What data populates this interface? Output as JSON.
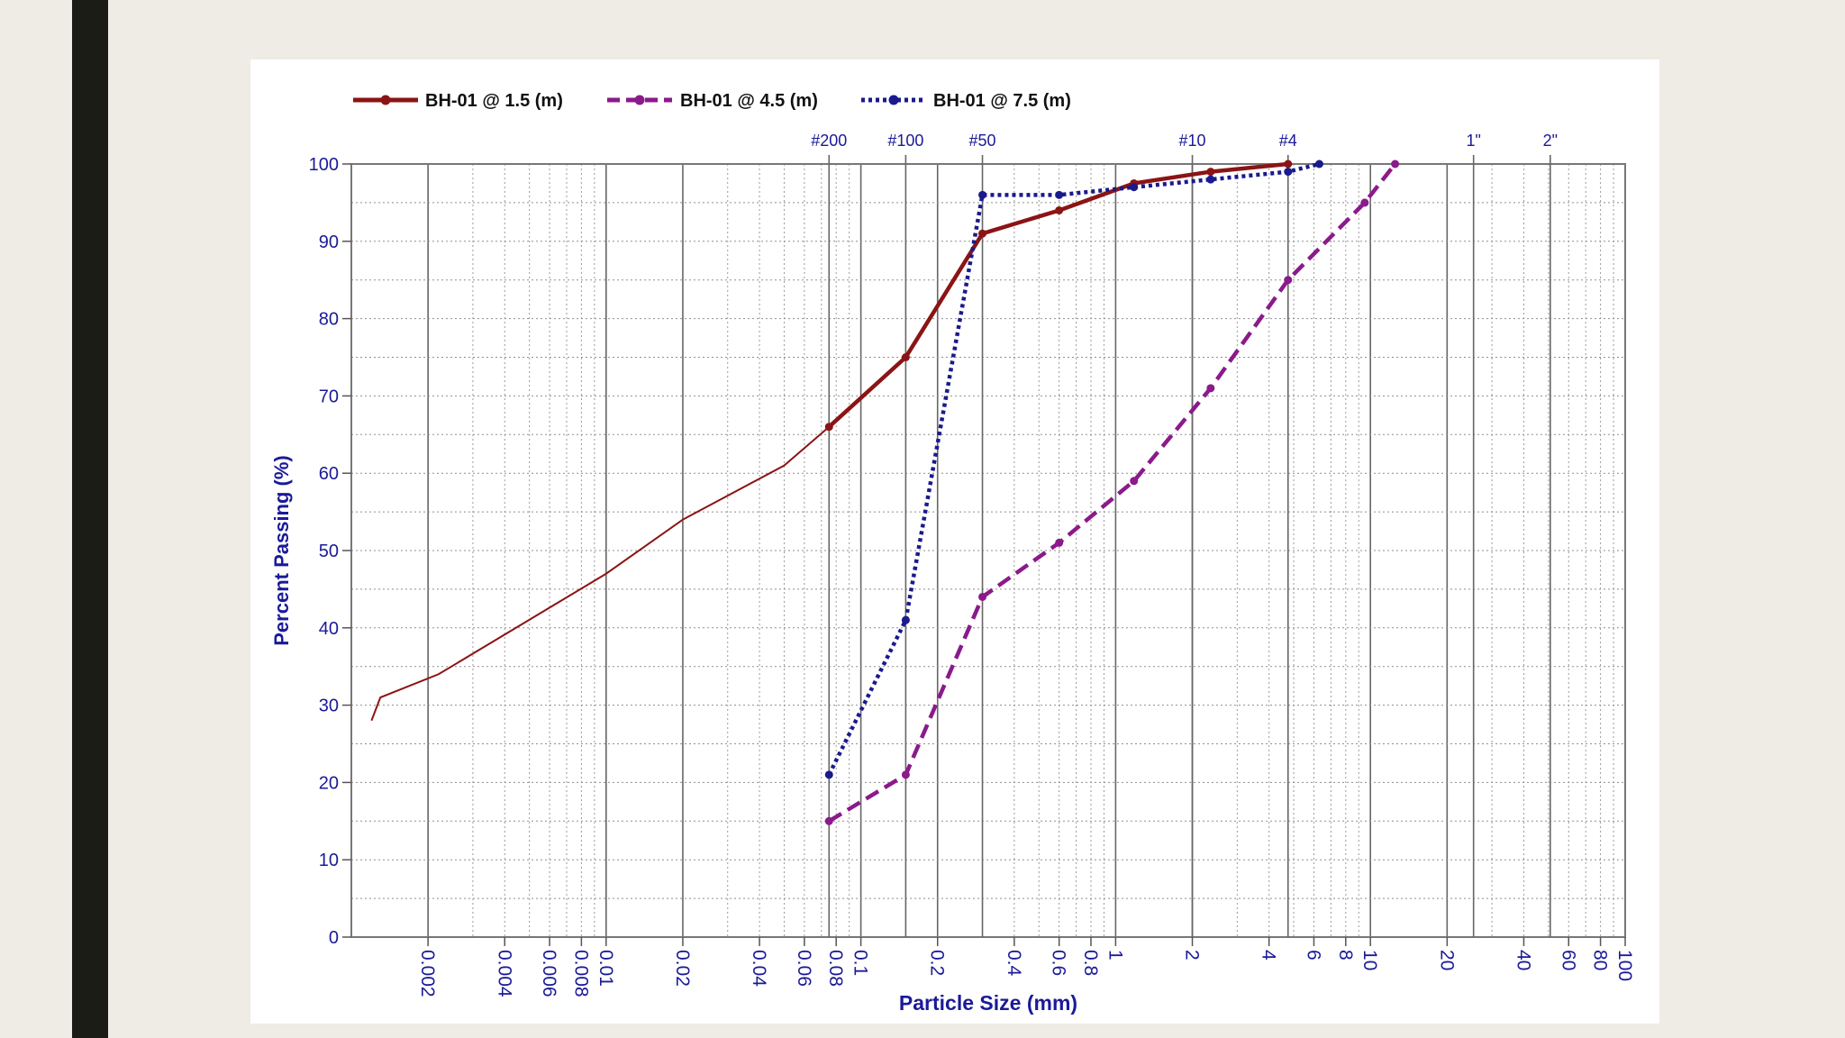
{
  "chart_data": {
    "type": "line",
    "title": "",
    "xlabel": "Particle Size (mm)",
    "ylabel": "Percent Passing (%)",
    "x_scale": "log",
    "xlim": [
      0.001,
      100
    ],
    "ylim": [
      0,
      100
    ],
    "grid": true,
    "legend_position": "top-left",
    "y_ticks": [
      "0",
      "10",
      "20",
      "30",
      "40",
      "50",
      "60",
      "70",
      "80",
      "90",
      "100"
    ],
    "x_ticks": [
      {
        "v": 0.002,
        "label": "0.002"
      },
      {
        "v": 0.004,
        "label": "0.004"
      },
      {
        "v": 0.006,
        "label": "0.006"
      },
      {
        "v": 0.008,
        "label": "0.008"
      },
      {
        "v": 0.01,
        "label": "0.01"
      },
      {
        "v": 0.02,
        "label": "0.02"
      },
      {
        "v": 0.04,
        "label": "0.04"
      },
      {
        "v": 0.06,
        "label": "0.06"
      },
      {
        "v": 0.08,
        "label": "0.08"
      },
      {
        "v": 0.1,
        "label": "0.1"
      },
      {
        "v": 0.2,
        "label": "0.2"
      },
      {
        "v": 0.4,
        "label": "0.4"
      },
      {
        "v": 0.6,
        "label": "0.6"
      },
      {
        "v": 0.8,
        "label": "0.8"
      },
      {
        "v": 1,
        "label": "1"
      },
      {
        "v": 2,
        "label": "2"
      },
      {
        "v": 4,
        "label": "4"
      },
      {
        "v": 6,
        "label": "6"
      },
      {
        "v": 8,
        "label": "8"
      },
      {
        "v": 10,
        "label": "10"
      },
      {
        "v": 20,
        "label": "20"
      },
      {
        "v": 40,
        "label": "40"
      },
      {
        "v": 60,
        "label": "60"
      },
      {
        "v": 80,
        "label": "80"
      },
      {
        "v": 100,
        "label": "100"
      }
    ],
    "sieve_ticks": [
      {
        "v": 0.075,
        "label": "#200"
      },
      {
        "v": 0.15,
        "label": "#100"
      },
      {
        "v": 0.3,
        "label": "#50"
      },
      {
        "v": 2.0,
        "label": "#10"
      },
      {
        "v": 4.75,
        "label": "#4"
      },
      {
        "v": 25.4,
        "label": "1\""
      },
      {
        "v": 50.8,
        "label": "2\""
      }
    ],
    "series": [
      {
        "name": "BH-01 @ 1.5 (m)",
        "color": "#8b1414",
        "style": "solid",
        "x": [
          0.075,
          0.15,
          0.3,
          0.6,
          1.18,
          2.36,
          4.75
        ],
        "y": [
          66,
          75,
          91,
          94,
          97.5,
          99,
          100
        ],
        "hydrometer": {
          "x": [
            0.0012,
            0.0013,
            0.0022,
            0.01,
            0.02,
            0.05,
            0.075
          ],
          "y": [
            28,
            31,
            34,
            47,
            54,
            61,
            66
          ]
        }
      },
      {
        "name": "BH-01 @ 4.5 (m)",
        "color": "#8b1a8b",
        "style": "dashed",
        "x": [
          0.075,
          0.15,
          0.3,
          0.6,
          1.18,
          2.36,
          4.75,
          9.5,
          12.5
        ],
        "y": [
          15,
          21,
          44,
          51,
          59,
          71,
          85,
          95,
          100
        ]
      },
      {
        "name": "BH-01 @ 7.5 (m)",
        "color": "#1a1a8c",
        "style": "dotted",
        "x": [
          0.075,
          0.15,
          0.3,
          0.6,
          1.18,
          2.36,
          4.75,
          6.3
        ],
        "y": [
          21,
          41,
          96,
          96,
          97,
          98,
          99,
          100
        ]
      }
    ]
  }
}
